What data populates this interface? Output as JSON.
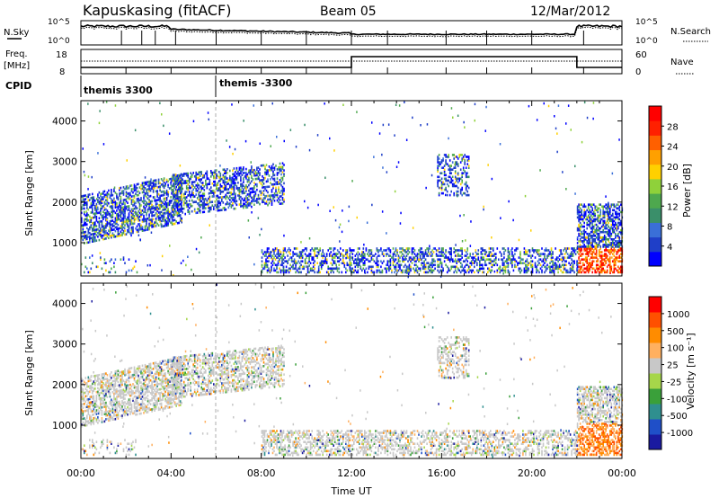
{
  "header": {
    "station": "Kapuskasing (fitACF)",
    "beam": "Beam 05",
    "date": "12/Mar/2012"
  },
  "top_panels": {
    "nsky_label": "N.Sky",
    "nsearch_label": "N.Search",
    "nsky_ticks": [
      "10^5",
      "10^0"
    ],
    "nsearch_ticks": [
      "10^5",
      "10^0"
    ],
    "freq_label": "Freq.",
    "freq_unit": "[MHz]",
    "freq_ticks": [
      "18",
      "8"
    ],
    "nave_label": "Nave",
    "nave_ticks": [
      "60",
      "0"
    ],
    "cpid_label": "CPID",
    "cpid_segments": [
      {
        "label": "themis 3300",
        "start_hour": 0
      },
      {
        "label": "themis -3300",
        "start_hour": 6
      }
    ]
  },
  "chart_data": [
    {
      "type": "heatmap",
      "name": "power-panel",
      "ylabel": "Slant Range [km]",
      "yticks": [
        1000,
        2000,
        3000,
        4000
      ],
      "ylim": [
        180,
        4500
      ],
      "xlim": [
        0,
        24
      ],
      "colorbar": {
        "label": "Power [dB]",
        "ticks": [
          "28",
          "24",
          "20",
          "16",
          "12",
          "8",
          "4"
        ],
        "colors": [
          "#0000ff",
          "#1f3fc8",
          "#3a6fd8",
          "#3a8f6a",
          "#4ea84e",
          "#8fd13a",
          "#ffd000",
          "#ffa000",
          "#ff6000",
          "#ff2000",
          "#ff0000"
        ]
      }
    },
    {
      "type": "heatmap",
      "name": "velocity-panel",
      "ylabel": "Slant Range [km]",
      "yticks": [
        1000,
        2000,
        3000,
        4000
      ],
      "ylim": [
        180,
        4500
      ],
      "xlim": [
        0,
        24
      ],
      "xlabel": "Time UT",
      "xticks": [
        "00:00",
        "04:00",
        "08:00",
        "12:00",
        "16:00",
        "20:00",
        "00:00"
      ],
      "colorbar": {
        "label": "Velocity [m s⁻¹]",
        "ticks": [
          "1000",
          "500",
          "100",
          "25",
          "-25",
          "-100",
          "-500",
          "-1000"
        ],
        "colors": [
          "#1a1aa0",
          "#1f4fc8",
          "#2f8f8f",
          "#3aa03a",
          "#a6d64a",
          "#c8c8c8",
          "#ffb060",
          "#ff8c00",
          "#ff5000",
          "#ff0000"
        ]
      }
    }
  ]
}
